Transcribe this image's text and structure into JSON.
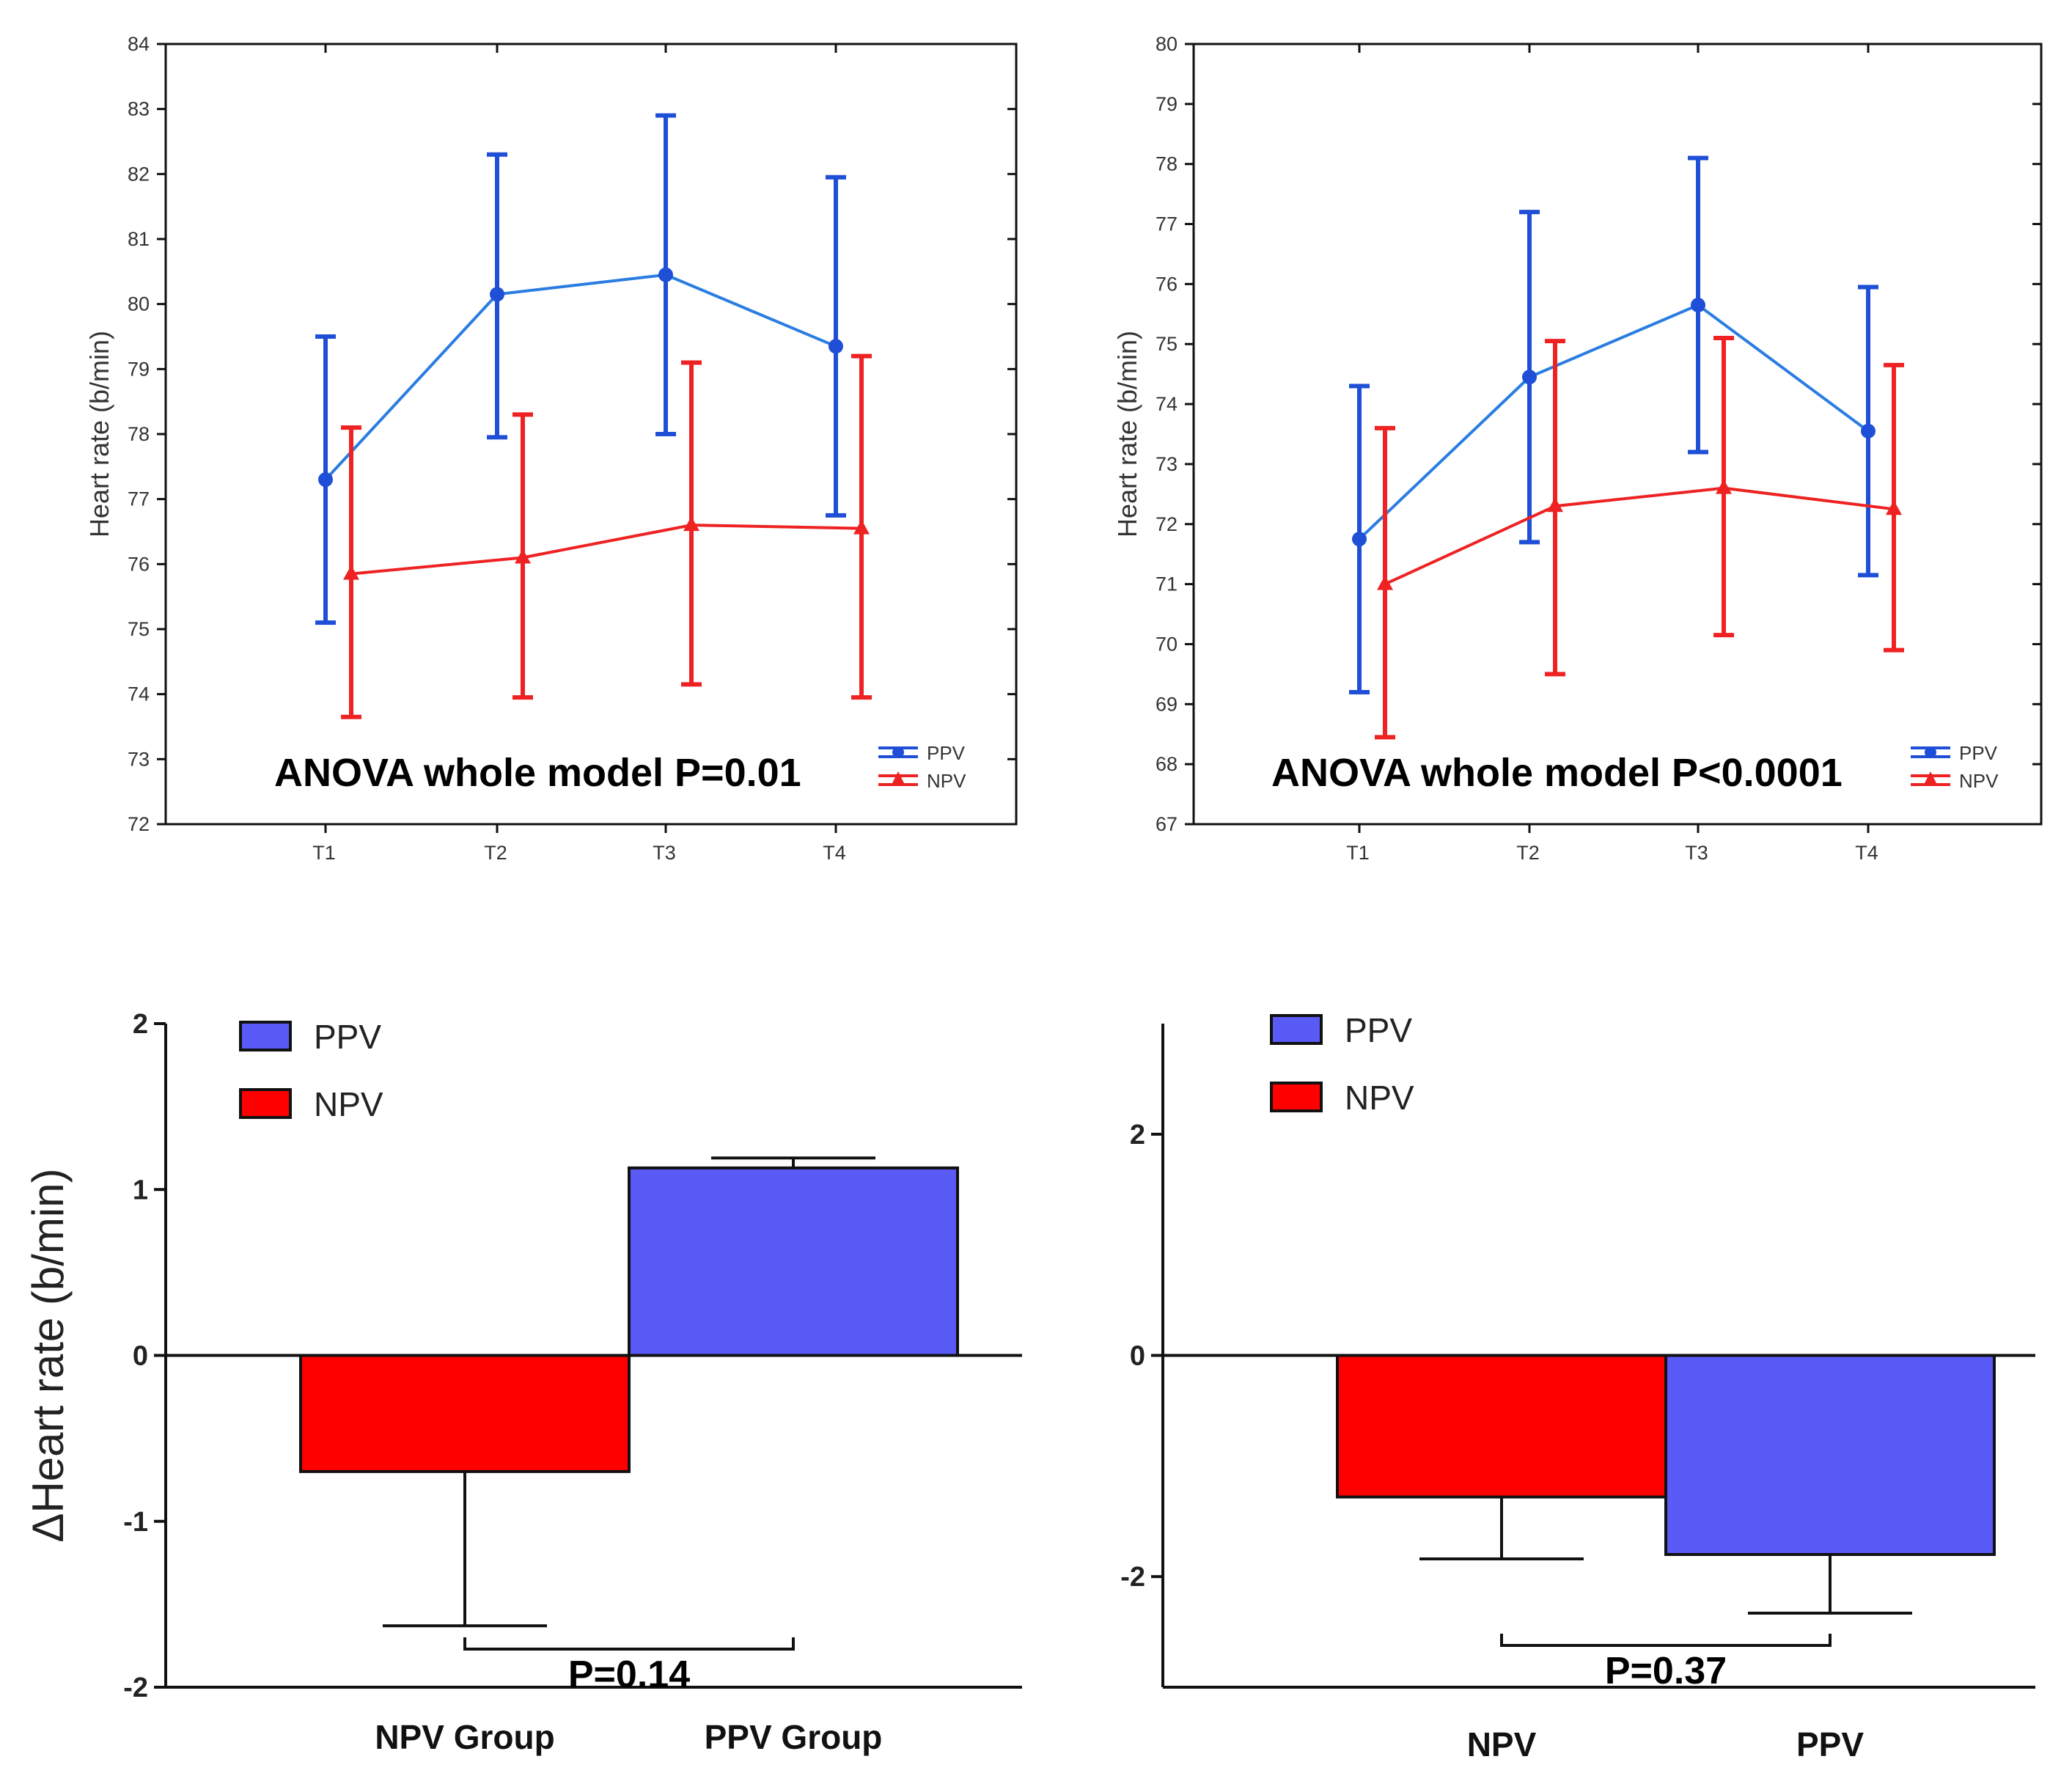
{
  "colors": {
    "ppv_line": "#1f4fd6",
    "ppv_line_conn": "#2a7de1",
    "npv_line": "#ee2222",
    "ppv_bar": "#5a5af7",
    "npv_bar": "#ff0000"
  },
  "chart_data": [
    {
      "type": "line",
      "title": "",
      "annotation": "ANOVA whole model P=0.01",
      "xlabel": "",
      "ylabel": "Heart rate (b/min)",
      "categories": [
        "T1",
        "T2",
        "T3",
        "T4"
      ],
      "ylim": [
        72,
        84
      ],
      "yticks": [
        "72",
        "73",
        "74",
        "75",
        "76",
        "77",
        "78",
        "79",
        "80",
        "81",
        "82",
        "83",
        "84"
      ],
      "legend": [
        "PPV",
        "NPV"
      ],
      "series": [
        {
          "name": "PPV",
          "values": [
            77.3,
            80.15,
            80.45,
            79.35
          ],
          "err_low": [
            75.1,
            77.95,
            78.0,
            76.75
          ],
          "err_high": [
            79.5,
            82.3,
            82.9,
            81.95
          ]
        },
        {
          "name": "NPV",
          "values": [
            75.85,
            76.1,
            76.6,
            76.55
          ],
          "err_low": [
            73.65,
            73.95,
            74.15,
            73.95
          ],
          "err_high": [
            78.1,
            78.3,
            79.1,
            79.2
          ]
        }
      ]
    },
    {
      "type": "line",
      "title": "",
      "annotation": "ANOVA whole model P<0.0001",
      "xlabel": "",
      "ylabel": "Heart rate (b/min)",
      "categories": [
        "T1",
        "T2",
        "T3",
        "T4"
      ],
      "ylim": [
        67,
        80
      ],
      "yticks": [
        "67",
        "68",
        "69",
        "70",
        "71",
        "72",
        "73",
        "74",
        "75",
        "76",
        "77",
        "78",
        "79",
        "80"
      ],
      "legend": [
        "PPV",
        "NPV"
      ],
      "series": [
        {
          "name": "PPV",
          "values": [
            71.75,
            74.45,
            75.65,
            73.55
          ],
          "err_low": [
            69.2,
            71.7,
            73.2,
            71.15
          ],
          "err_high": [
            74.3,
            77.2,
            78.1,
            75.95
          ]
        },
        {
          "name": "NPV",
          "values": [
            71.0,
            72.3,
            72.6,
            72.25
          ],
          "err_low": [
            68.45,
            69.5,
            70.15,
            69.9
          ],
          "err_high": [
            73.6,
            75.05,
            75.1,
            74.65
          ]
        }
      ]
    },
    {
      "type": "bar",
      "title": "",
      "xlabel": "",
      "ylabel": "ΔHeart rate (b/min)",
      "categories": [
        "NPV Group",
        "PPV Group"
      ],
      "ylim": [
        -2,
        2
      ],
      "yticks": [
        "-2",
        "-1",
        "0",
        "1",
        "2"
      ],
      "legend": [
        "PPV",
        "NPV"
      ],
      "series_of_bar": [
        "NPV",
        "PPV"
      ],
      "values": [
        -0.7,
        1.13
      ],
      "errors": [
        0.93,
        0.06
      ],
      "pvalue": "P=0.14"
    },
    {
      "type": "bar",
      "title": "",
      "xlabel": "",
      "ylabel": "",
      "categories": [
        "NPV",
        "PPV"
      ],
      "ylim": [
        -3,
        3
      ],
      "yticks": [
        "-2",
        "0",
        "2"
      ],
      "legend": [
        "PPV",
        "NPV"
      ],
      "series_of_bar": [
        "NPV",
        "PPV"
      ],
      "values": [
        -1.28,
        -1.8
      ],
      "errors": [
        0.56,
        0.53
      ],
      "pvalue": "P=0.37"
    }
  ]
}
